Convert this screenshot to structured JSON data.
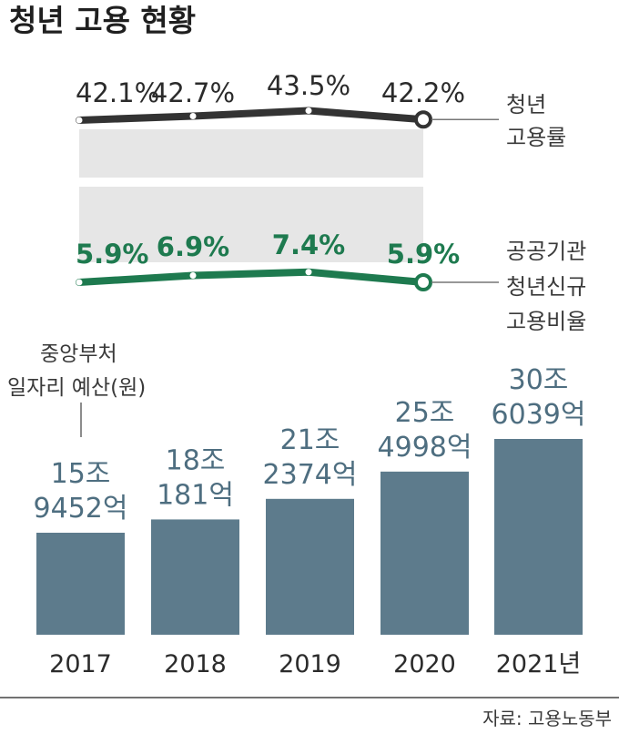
{
  "title": "청년 고용 현황",
  "years": [
    "2017",
    "2018",
    "2019",
    "2020",
    "2021년"
  ],
  "employment_rate": {
    "legend": [
      "청년",
      "고용률"
    ],
    "labels": [
      "42.1%",
      "42.7%",
      "43.5%",
      "42.2%"
    ],
    "values": [
      42.1,
      42.7,
      43.5,
      42.2
    ],
    "color": "#333333"
  },
  "public_hiring_ratio": {
    "legend": [
      "공공기관",
      "청년신규",
      "고용비율"
    ],
    "labels": [
      "5.9%",
      "6.9%",
      "7.4%",
      "5.9%"
    ],
    "values": [
      5.9,
      6.9,
      7.4,
      5.9
    ],
    "color": "#1e7a4f"
  },
  "budget": {
    "title": [
      "중앙부처",
      "일자리 예산(원)"
    ],
    "labels": [
      [
        "15조",
        "9452억"
      ],
      [
        "18조",
        "181억"
      ],
      [
        "21조",
        "2374억"
      ],
      [
        "25조",
        "4998억"
      ],
      [
        "30조",
        "6039억"
      ]
    ],
    "values_eok": [
      159452,
      180181,
      212374,
      254998,
      306039
    ],
    "bar_color": "#5d7b8c",
    "label_color": "#4e6e80"
  },
  "source": "자료: 고용노동부",
  "chart_data": [
    {
      "type": "line",
      "x": [
        "2017",
        "2018",
        "2019",
        "2020"
      ],
      "series": [
        {
          "name": "청년 고용률",
          "values": [
            42.1,
            42.7,
            43.5,
            42.2
          ]
        }
      ]
    },
    {
      "type": "line",
      "x": [
        "2017",
        "2018",
        "2019",
        "2020"
      ],
      "series": [
        {
          "name": "공공기관 청년신규 고용비율",
          "values": [
            5.9,
            6.9,
            7.4,
            5.9
          ]
        }
      ]
    },
    {
      "type": "bar",
      "categories": [
        "2017",
        "2018",
        "2019",
        "2020",
        "2021년"
      ],
      "values": [
        159452,
        180181,
        212374,
        254998,
        306039
      ],
      "ylabel": "중앙부처 일자리 예산(원)"
    }
  ]
}
